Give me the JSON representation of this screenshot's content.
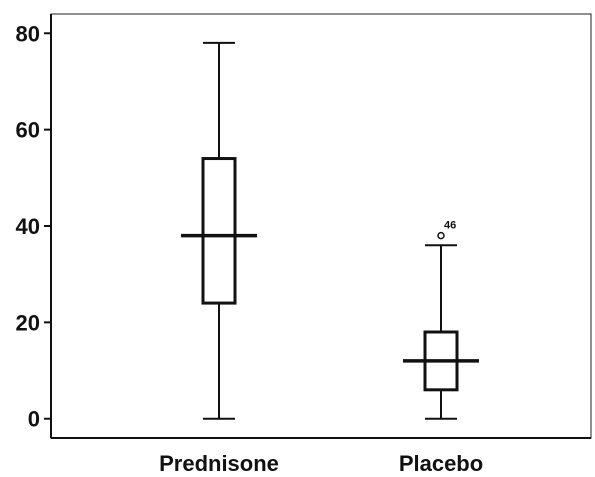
{
  "chart_data": {
    "type": "boxplot",
    "title": "",
    "xlabel": "",
    "ylabel": "",
    "ylim": [
      -4,
      84
    ],
    "yticks": [
      0,
      20,
      40,
      60,
      80
    ],
    "grid": false,
    "categories": [
      "Prednisone",
      "Placebo"
    ],
    "boxes": [
      {
        "category": "Prednisone",
        "min": 0,
        "q1": 24,
        "median": 38,
        "q3": 54,
        "max": 78,
        "outliers": []
      },
      {
        "category": "Placebo",
        "min": 0,
        "q1": 6,
        "median": 12,
        "q3": 18,
        "max": 36,
        "outliers": [
          {
            "value": 38,
            "label": "46"
          }
        ]
      }
    ]
  }
}
